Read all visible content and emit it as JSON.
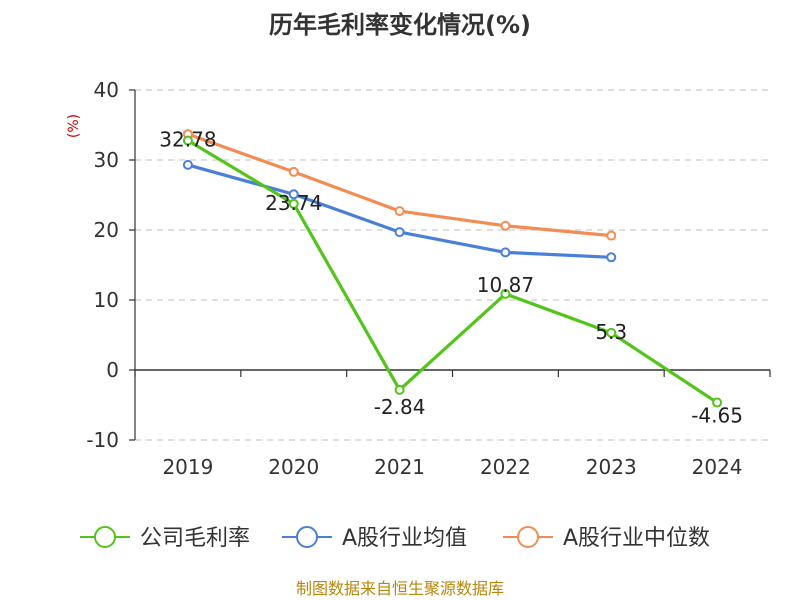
{
  "chart_data": {
    "type": "line",
    "title": "历年毛利率变化情况(%)",
    "ylabel": "(%)",
    "xlabel": "",
    "categories": [
      "2019",
      "2020",
      "2021",
      "2022",
      "2023",
      "2024"
    ],
    "ylim": [
      -10,
      40
    ],
    "yticks": [
      40,
      30,
      20,
      10,
      0,
      -10
    ],
    "grid": true,
    "legend_position": "bottom",
    "series": [
      {
        "name": "公司毛利率",
        "color": "#52c41a",
        "values": [
          32.78,
          23.74,
          -2.84,
          10.87,
          5.3,
          -4.65
        ],
        "labels": [
          "32.78",
          "23.74",
          "-2.84",
          "10.87",
          "5.3",
          "-4.65"
        ]
      },
      {
        "name": "A股行业均值",
        "color": "#4a7fd8",
        "values": [
          29.3,
          25.1,
          19.7,
          16.8,
          16.1,
          null
        ]
      },
      {
        "name": "A股行业中位数",
        "color": "#f28c54",
        "values": [
          33.7,
          28.3,
          22.7,
          20.6,
          19.2,
          null
        ]
      }
    ],
    "source": "制图数据来自恒生聚源数据库"
  }
}
